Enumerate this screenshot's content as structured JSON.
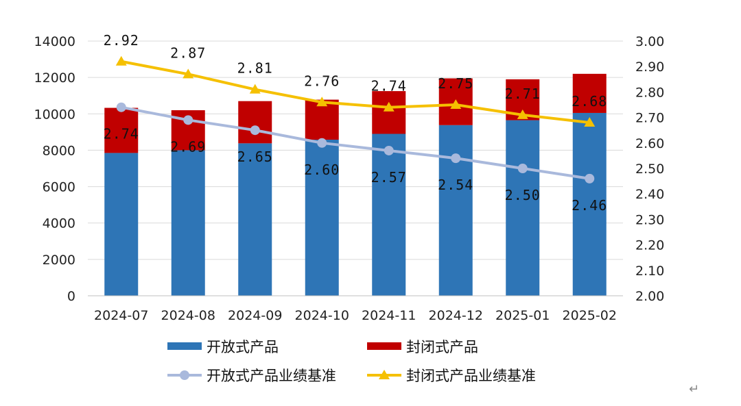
{
  "chart_data": {
    "type": "bar",
    "stacked": true,
    "categories": [
      "2024-07",
      "2024-08",
      "2024-09",
      "2024-10",
      "2024-11",
      "2024-12",
      "2025-01",
      "2025-02"
    ],
    "bar_series": [
      {
        "name": "开放式产品",
        "color": "#2e75b6",
        "values": [
          7850,
          8000,
          8380,
          8580,
          8900,
          9380,
          9650,
          10050
        ]
      },
      {
        "name": "封闭式产品",
        "color": "#c00000",
        "values": [
          2480,
          2200,
          2320,
          2200,
          2350,
          2570,
          2250,
          2150
        ]
      }
    ],
    "line_series": [
      {
        "name": "开放式产品业绩基准",
        "color": "#a9b9dc",
        "marker": "circle",
        "axis": "right",
        "values": [
          2.74,
          2.69,
          2.65,
          2.6,
          2.57,
          2.54,
          2.5,
          2.46
        ],
        "labels": [
          "2.74",
          "2.69",
          "2.65",
          "2.60",
          "2.57",
          "2.54",
          "2.50",
          "2.46"
        ]
      },
      {
        "name": "封闭式产品业绩基准",
        "color": "#f5c000",
        "marker": "triangle",
        "axis": "right",
        "values": [
          2.92,
          2.87,
          2.81,
          2.76,
          2.74,
          2.75,
          2.71,
          2.68
        ],
        "labels": [
          "2.92",
          "2.87",
          "2.81",
          "2.76",
          "2.74",
          "2.75",
          "2.71",
          "2.68"
        ]
      }
    ],
    "y_left": {
      "min": 0,
      "max": 14000,
      "ticks": [
        "0",
        "2000",
        "4000",
        "6000",
        "8000",
        "10000",
        "12000",
        "14000"
      ]
    },
    "y_right": {
      "min": 2.0,
      "max": 3.0,
      "ticks": [
        "2.00",
        "2.10",
        "2.20",
        "2.30",
        "2.40",
        "2.50",
        "2.60",
        "2.70",
        "2.80",
        "2.90",
        "3.00"
      ]
    },
    "grid": true,
    "legend_position": "bottom"
  },
  "misc": {
    "return_glyph": "↵"
  }
}
